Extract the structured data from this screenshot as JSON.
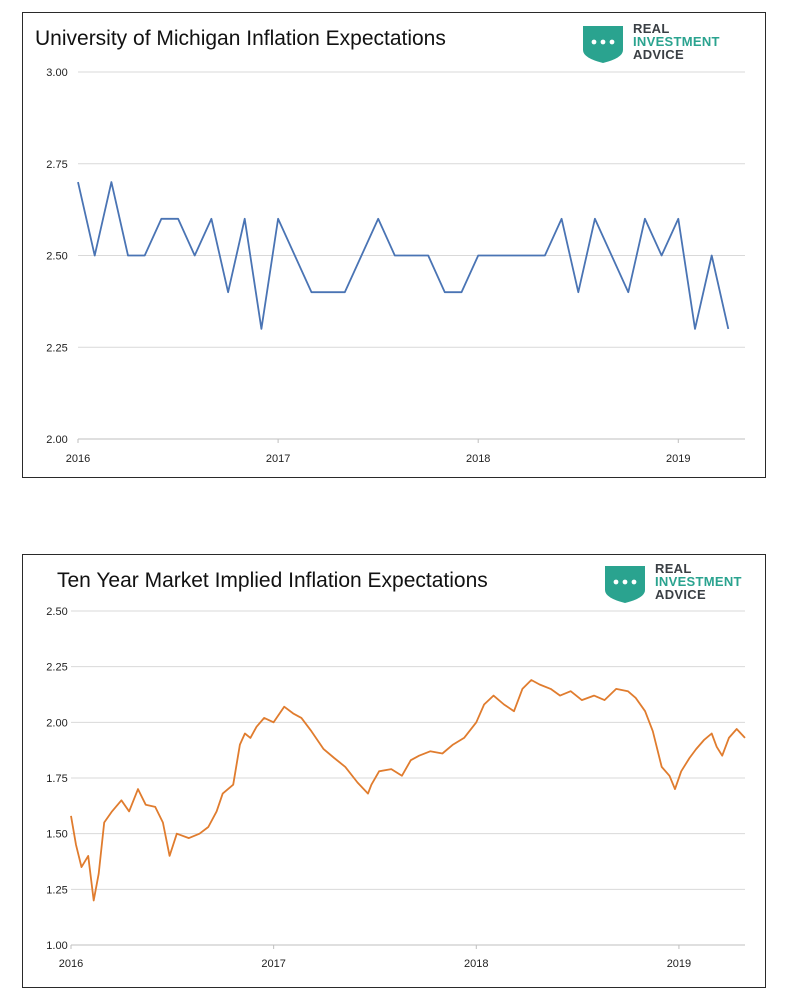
{
  "charts": [
    {
      "title": "University of Michigan Inflation Expectations",
      "logo_lines": [
        "REAL",
        "INVESTMENT",
        "ADVICE"
      ],
      "logo_name": "real-investment-advice-shield-logo"
    },
    {
      "title": "Ten Year Market Implied Inflation Expectations",
      "logo_lines": [
        "REAL",
        "INVESTMENT",
        "ADVICE"
      ],
      "logo_name": "real-investment-advice-shield-logo"
    }
  ],
  "colors": {
    "series_1": "#4a74b4",
    "series_2": "#e07c2e",
    "grid": "#d9d9d9",
    "logo_teal": "#2aa38f",
    "logo_dark": "#3a3f44"
  },
  "chart_data": [
    {
      "type": "line",
      "title": "University of Michigan Inflation Expectations",
      "xlabel": "",
      "ylabel": "",
      "ylim": [
        2.0,
        3.0
      ],
      "yticks": [
        "3.00",
        "2.75",
        "2.50",
        "2.25",
        "2.00"
      ],
      "ytick_values": [
        3.0,
        2.75,
        2.5,
        2.25,
        2.0
      ],
      "xlim": [
        "2016-01",
        "2019-05"
      ],
      "xticks": [
        "2016",
        "2017",
        "2018",
        "2019"
      ],
      "grid": true,
      "legend": "none",
      "series": [
        {
          "x": [
            "2016-01",
            "2016-02",
            "2016-03",
            "2016-04",
            "2016-05",
            "2016-06",
            "2016-07",
            "2016-08",
            "2016-09",
            "2016-10",
            "2016-11",
            "2016-12",
            "2017-01",
            "2017-02",
            "2017-03",
            "2017-04",
            "2017-05",
            "2017-06",
            "2017-07",
            "2017-08",
            "2017-09",
            "2017-10",
            "2017-11",
            "2017-12",
            "2018-01",
            "2018-02",
            "2018-03",
            "2018-04",
            "2018-05",
            "2018-06",
            "2018-07",
            "2018-08",
            "2018-09",
            "2018-10",
            "2018-11",
            "2018-12",
            "2019-01",
            "2019-02",
            "2019-03",
            "2019-04"
          ],
          "values": [
            2.7,
            2.5,
            2.7,
            2.5,
            2.5,
            2.6,
            2.6,
            2.5,
            2.6,
            2.4,
            2.6,
            2.3,
            2.6,
            2.5,
            2.4,
            2.4,
            2.4,
            2.5,
            2.6,
            2.5,
            2.5,
            2.5,
            2.4,
            2.4,
            2.5,
            2.5,
            2.5,
            2.5,
            2.5,
            2.6,
            2.4,
            2.6,
            2.5,
            2.4,
            2.6,
            2.5,
            2.6,
            2.3,
            2.5,
            2.3
          ]
        }
      ]
    },
    {
      "type": "line",
      "title": "Ten Year Market Implied Inflation Expectations",
      "xlabel": "",
      "ylabel": "",
      "ylim": [
        1.0,
        2.5
      ],
      "yticks": [
        "2.50",
        "2.25",
        "2.00",
        "1.75",
        "1.50",
        "1.25",
        "1.00"
      ],
      "ytick_values": [
        2.5,
        2.25,
        2.0,
        1.75,
        1.5,
        1.25,
        1.0
      ],
      "xlim": [
        "2016-01-01",
        "2019-04-30"
      ],
      "xticks": [
        "2016",
        "2017",
        "2018",
        "2019"
      ],
      "grid": true,
      "legend": "none",
      "series": [
        {
          "x": [
            "2016-01-01",
            "2016-01-10",
            "2016-01-20",
            "2016-02-01",
            "2016-02-11",
            "2016-02-20",
            "2016-03-01",
            "2016-03-15",
            "2016-04-01",
            "2016-04-15",
            "2016-05-01",
            "2016-05-15",
            "2016-06-01",
            "2016-06-15",
            "2016-06-27",
            "2016-07-10",
            "2016-08-01",
            "2016-08-20",
            "2016-09-05",
            "2016-09-20",
            "2016-10-01",
            "2016-10-20",
            "2016-11-01",
            "2016-11-10",
            "2016-11-20",
            "2016-12-01",
            "2016-12-15",
            "2017-01-01",
            "2017-01-20",
            "2017-02-05",
            "2017-02-20",
            "2017-03-10",
            "2017-04-01",
            "2017-04-20",
            "2017-05-10",
            "2017-06-01",
            "2017-06-20",
            "2017-06-26",
            "2017-07-10",
            "2017-08-01",
            "2017-08-20",
            "2017-09-05",
            "2017-09-20",
            "2017-10-10",
            "2017-11-01",
            "2017-11-20",
            "2017-12-10",
            "2018-01-01",
            "2018-01-15",
            "2018-02-01",
            "2018-02-20",
            "2018-03-10",
            "2018-03-25",
            "2018-04-10",
            "2018-04-25",
            "2018-05-15",
            "2018-06-01",
            "2018-06-20",
            "2018-07-10",
            "2018-08-01",
            "2018-08-20",
            "2018-09-10",
            "2018-10-01",
            "2018-10-15",
            "2018-11-01",
            "2018-11-15",
            "2018-12-01",
            "2018-12-15",
            "2018-12-25",
            "2019-01-05",
            "2019-01-20",
            "2019-02-01",
            "2019-02-15",
            "2019-03-01",
            "2019-03-10",
            "2019-03-20",
            "2019-04-01",
            "2019-04-15",
            "2019-04-30"
          ],
          "values": [
            1.58,
            1.45,
            1.35,
            1.4,
            1.2,
            1.32,
            1.55,
            1.6,
            1.65,
            1.6,
            1.7,
            1.63,
            1.62,
            1.55,
            1.4,
            1.5,
            1.48,
            1.5,
            1.53,
            1.6,
            1.68,
            1.72,
            1.9,
            1.95,
            1.93,
            1.98,
            2.02,
            2.0,
            2.07,
            2.04,
            2.02,
            1.96,
            1.88,
            1.84,
            1.8,
            1.73,
            1.68,
            1.72,
            1.78,
            1.79,
            1.76,
            1.83,
            1.85,
            1.87,
            1.86,
            1.9,
            1.93,
            2.0,
            2.08,
            2.12,
            2.08,
            2.05,
            2.15,
            2.19,
            2.17,
            2.15,
            2.12,
            2.14,
            2.1,
            2.12,
            2.1,
            2.15,
            2.14,
            2.11,
            2.05,
            1.96,
            1.8,
            1.76,
            1.7,
            1.78,
            1.84,
            1.88,
            1.92,
            1.95,
            1.89,
            1.85,
            1.93,
            1.97,
            1.93
          ]
        }
      ]
    }
  ]
}
